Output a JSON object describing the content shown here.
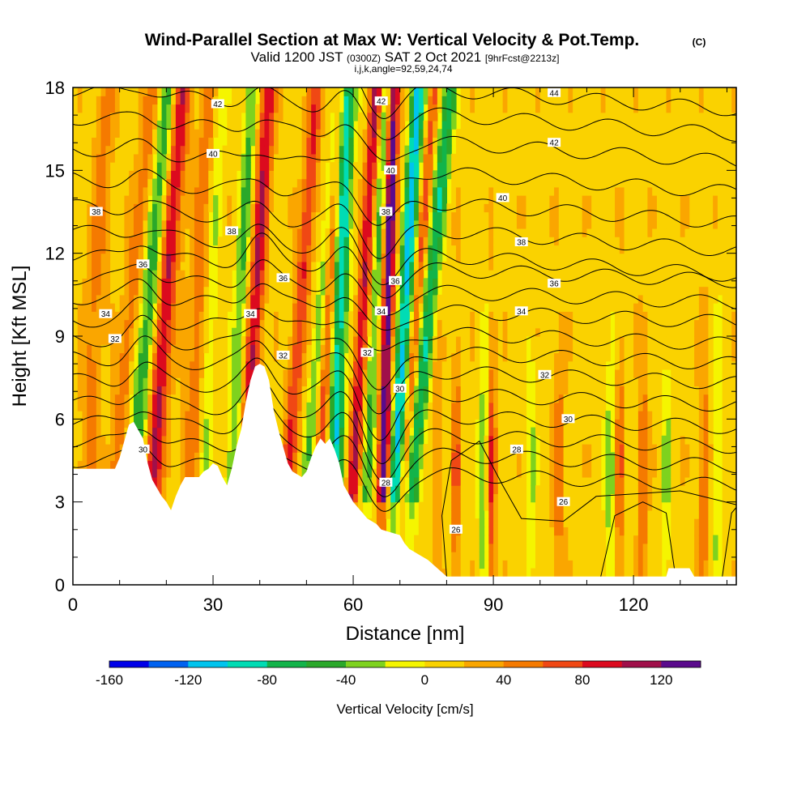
{
  "chart_data": {
    "type": "heatmap",
    "title": "Wind-Parallel Section at Max W: Vertical Velocity & Pot.Temp.",
    "title_mark": "(C)",
    "subtitle_prefix": "Valid 1200 JST",
    "subtitle_utc": "(0300Z)",
    "subtitle_date": "SAT 2 Oct 2021",
    "subtitle_fcst": "[9hrFcst@2213z]",
    "subtitle2": "i,j,k,angle=92,59,24,74",
    "xlabel": "Distance [nm]",
    "ylabel": "Height [Kft MSL]",
    "xlim": [
      0,
      142
    ],
    "ylim": [
      0,
      18
    ],
    "x_ticks": [
      0,
      30,
      60,
      90,
      120
    ],
    "x_tick_labels": [
      "0",
      "30",
      "60",
      "90",
      "120"
    ],
    "y_ticks": [
      0,
      3,
      6,
      9,
      12,
      15,
      18
    ],
    "y_tick_labels": [
      "0",
      "3",
      "6",
      "9",
      "12",
      "15",
      "18"
    ],
    "colorbar": {
      "label": "Vertical Velocity [cm/s]",
      "bounds": [
        -160,
        -140,
        -120,
        -100,
        -80,
        -60,
        -40,
        -20,
        0,
        20,
        40,
        60,
        80,
        100,
        120,
        140
      ],
      "tick_values": [
        -160,
        -120,
        -80,
        -40,
        0,
        40,
        80,
        120
      ],
      "tick_labels": [
        "-160",
        "-120",
        "-80",
        "-40",
        "0",
        "40",
        "80",
        "120"
      ],
      "colors": [
        "#0000e8",
        "#0062f0",
        "#00c4ee",
        "#00dcb4",
        "#12b44a",
        "#2aa82a",
        "#7ed21e",
        "#f5f500",
        "#fad200",
        "#faa600",
        "#f57a00",
        "#f04814",
        "#dc0a1e",
        "#a0104a",
        "#5a0a8c"
      ]
    },
    "contour_field": "Potential Temperature",
    "contour_labels": [
      {
        "x": 103,
        "y": 17.8,
        "text": "44"
      },
      {
        "x": 31,
        "y": 17.4,
        "text": "42"
      },
      {
        "x": 66,
        "y": 17.5,
        "text": "42"
      },
      {
        "x": 103,
        "y": 16.0,
        "text": "42"
      },
      {
        "x": 30,
        "y": 15.6,
        "text": "40"
      },
      {
        "x": 68,
        "y": 15.0,
        "text": "40"
      },
      {
        "x": 92,
        "y": 14.0,
        "text": "40"
      },
      {
        "x": 5,
        "y": 13.5,
        "text": "38"
      },
      {
        "x": 34,
        "y": 12.8,
        "text": "38"
      },
      {
        "x": 67,
        "y": 13.5,
        "text": "38"
      },
      {
        "x": 96,
        "y": 12.4,
        "text": "38"
      },
      {
        "x": 15,
        "y": 11.6,
        "text": "36"
      },
      {
        "x": 45,
        "y": 11.1,
        "text": "36"
      },
      {
        "x": 69,
        "y": 11.0,
        "text": "36"
      },
      {
        "x": 103,
        "y": 10.9,
        "text": "36"
      },
      {
        "x": 7,
        "y": 9.8,
        "text": "34"
      },
      {
        "x": 38,
        "y": 9.8,
        "text": "34"
      },
      {
        "x": 66,
        "y": 9.9,
        "text": "34"
      },
      {
        "x": 96,
        "y": 9.9,
        "text": "34"
      },
      {
        "x": 9,
        "y": 8.9,
        "text": "32"
      },
      {
        "x": 45,
        "y": 8.3,
        "text": "32"
      },
      {
        "x": 63,
        "y": 8.4,
        "text": "32"
      },
      {
        "x": 101,
        "y": 7.6,
        "text": "32"
      },
      {
        "x": 70,
        "y": 7.1,
        "text": "30"
      },
      {
        "x": 106,
        "y": 6.0,
        "text": "30"
      },
      {
        "x": 15,
        "y": 4.9,
        "text": "30"
      },
      {
        "x": 95,
        "y": 4.9,
        "text": "28"
      },
      {
        "x": 67,
        "y": 3.7,
        "text": "28"
      },
      {
        "x": 105,
        "y": 3.0,
        "text": "26"
      },
      {
        "x": 82,
        "y": 2.0,
        "text": "26"
      }
    ],
    "grid": false,
    "legend_position": "bottom"
  },
  "colors": {
    "background": "#ffffff",
    "plot_fill": "#f5f500",
    "terrain": "#ffffff",
    "contour": "#000000"
  }
}
